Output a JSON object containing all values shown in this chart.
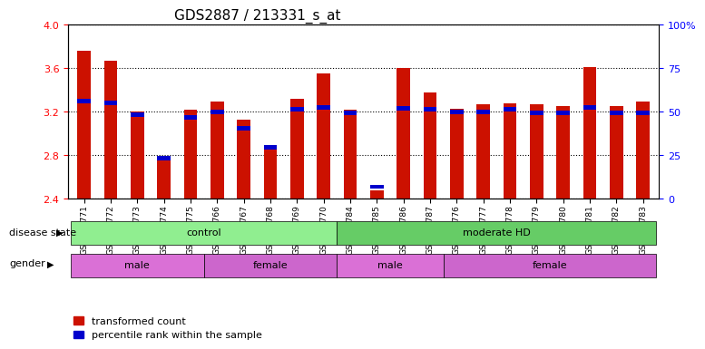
{
  "title": "GDS2887 / 213331_s_at",
  "samples": [
    "GSM217771",
    "GSM217772",
    "GSM217773",
    "GSM217774",
    "GSM217775",
    "GSM217766",
    "GSM217767",
    "GSM217768",
    "GSM217769",
    "GSM217770",
    "GSM217784",
    "GSM217785",
    "GSM217786",
    "GSM217787",
    "GSM217776",
    "GSM217777",
    "GSM217778",
    "GSM217779",
    "GSM217780",
    "GSM217781",
    "GSM217782",
    "GSM217783"
  ],
  "red_values": [
    3.76,
    3.67,
    3.2,
    2.75,
    3.22,
    3.29,
    3.13,
    2.85,
    3.32,
    3.55,
    3.22,
    2.48,
    3.6,
    3.38,
    3.23,
    3.27,
    3.28,
    3.27,
    3.25,
    3.61,
    3.25,
    3.29
  ],
  "blue_values": [
    3.3,
    3.28,
    3.17,
    2.77,
    3.15,
    3.2,
    3.05,
    2.87,
    3.22,
    3.24,
    3.19,
    2.51,
    3.23,
    3.22,
    3.2,
    3.2,
    3.22,
    3.19,
    3.19,
    3.24,
    3.19,
    3.19
  ],
  "ylim_left": [
    2.4,
    4.0
  ],
  "yticks_left": [
    2.4,
    2.8,
    3.2,
    3.6,
    4.0
  ],
  "yticks_right": [
    0,
    25,
    50,
    75,
    100
  ],
  "ytick_labels_right": [
    "0",
    "25",
    "50",
    "75",
    "100%"
  ],
  "disease_state_groups": [
    {
      "label": "control",
      "start": 0,
      "end": 10,
      "color": "#90EE90"
    },
    {
      "label": "moderate HD",
      "start": 10,
      "end": 22,
      "color": "#66CC66"
    }
  ],
  "gender_groups": [
    {
      "label": "male",
      "start": 0,
      "end": 5,
      "color": "#DA70D6"
    },
    {
      "label": "female",
      "start": 5,
      "end": 10,
      "color": "#CC66CC"
    },
    {
      "label": "male",
      "start": 10,
      "end": 14,
      "color": "#DA70D6"
    },
    {
      "label": "female",
      "start": 14,
      "end": 22,
      "color": "#CC66CC"
    }
  ],
  "red_color": "#CC1100",
  "blue_color": "#0000CC",
  "bar_width": 0.5,
  "legend_items": [
    "transformed count",
    "percentile rank within the sample"
  ],
  "disease_label": "disease state",
  "gender_label": "gender",
  "ybase": 2.4
}
